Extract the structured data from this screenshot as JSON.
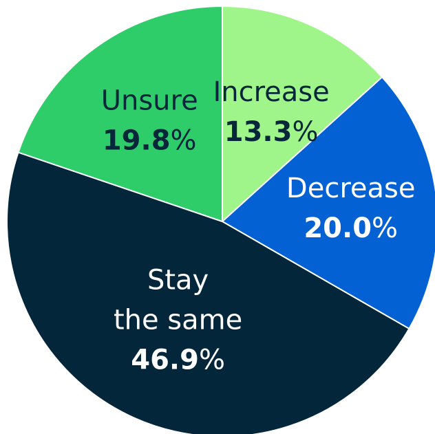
{
  "chart_data": {
    "type": "pie",
    "start_angle": "12 o'clock",
    "direction": "clockwise",
    "slices": [
      {
        "label": [
          "Increase"
        ],
        "value": 13.3,
        "value_text": "13.3",
        "suffix": "%",
        "color": "#9ff58a",
        "text_color": "#06273a"
      },
      {
        "label": [
          "Decrease"
        ],
        "value": 20.0,
        "value_text": "20.0",
        "suffix": "%",
        "color": "#0361d3",
        "text_color": "#ffffff"
      },
      {
        "label": [
          "Stay",
          "the same"
        ],
        "value": 46.9,
        "value_text": "46.9",
        "suffix": "%",
        "color": "#04263a",
        "text_color": "#ffffff"
      },
      {
        "label": [
          "Unsure"
        ],
        "value": 19.8,
        "value_text": "19.8",
        "suffix": "%",
        "color": "#2ecd6a",
        "text_color": "#06273a"
      }
    ]
  }
}
